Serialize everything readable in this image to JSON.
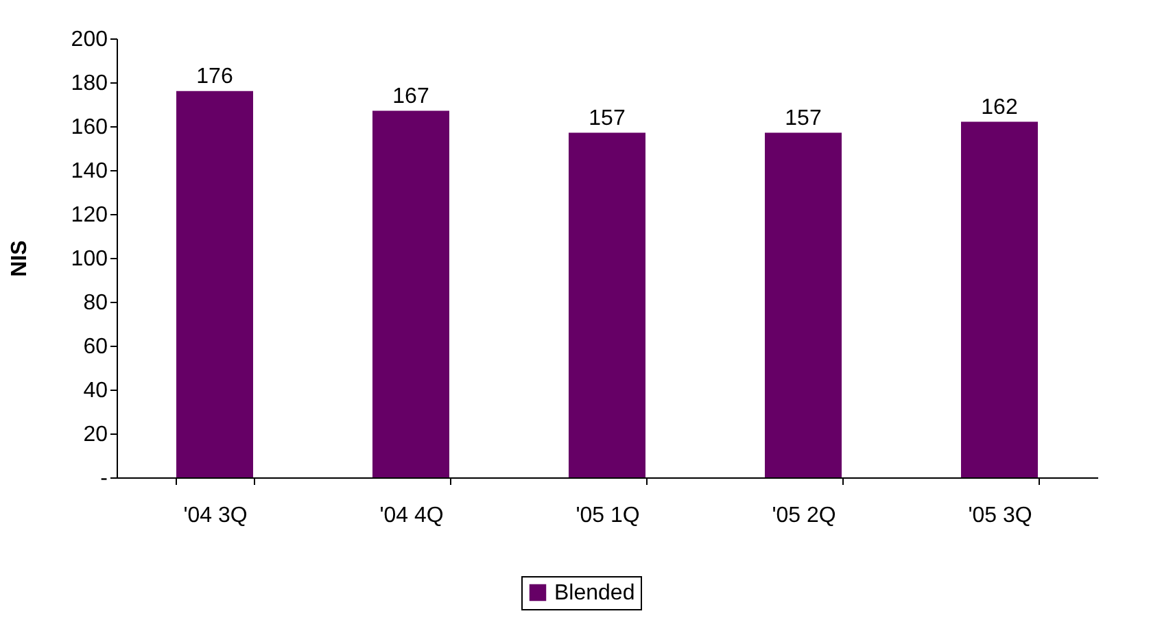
{
  "chart_data": {
    "type": "bar",
    "ylabel": "NIS",
    "categories": [
      "'04 3Q",
      "'04 4Q",
      "'05 1Q",
      "'05 2Q",
      "'05 3Q"
    ],
    "series": [
      {
        "name": "Blended",
        "color": "#660066",
        "values": [
          176,
          167,
          157,
          157,
          162
        ]
      }
    ],
    "ylim": [
      0,
      200
    ],
    "yticks": [
      {
        "value": 0,
        "label": "-"
      },
      20,
      40,
      60,
      80,
      100,
      120,
      140,
      160,
      180,
      200
    ],
    "data_labels": true,
    "grid": false,
    "legend": "bottom"
  }
}
